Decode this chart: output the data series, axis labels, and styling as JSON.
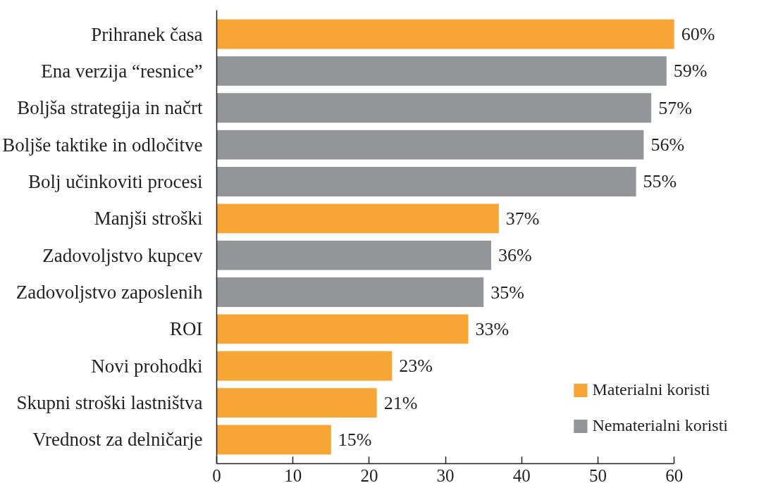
{
  "chart_data": {
    "type": "bar",
    "orientation": "horizontal",
    "categories": [
      "Prihranek časa",
      "Ena verzija “resnice”",
      "Boljša strategija in načrt",
      "Boljše taktike in odločitve",
      "Bolj učinkoviti procesi",
      "Manjši stroški",
      "Zadovoljstvo kupcev",
      "Zadovoljstvo zaposlenih",
      "ROI",
      "Novi prohodki",
      "Skupni stroški lastništva",
      "Vrednost za delničarje"
    ],
    "series": [
      {
        "name": "Materialni koristi",
        "color": "#f7a535",
        "values": [
          60,
          null,
          null,
          null,
          null,
          37,
          null,
          null,
          33,
          23,
          21,
          15
        ],
        "value_labels": [
          "60%",
          null,
          null,
          null,
          null,
          "37%",
          null,
          null,
          "33%",
          "23%",
          "21%",
          "15%"
        ]
      },
      {
        "name": "Nematerialni koristi",
        "color": "#939598",
        "values": [
          null,
          59,
          57,
          56,
          55,
          null,
          36,
          35,
          null,
          null,
          null,
          null
        ],
        "value_labels": [
          null,
          "59%",
          "57%",
          "56%",
          "55%",
          null,
          "36%",
          "35%",
          null,
          null,
          null,
          null
        ]
      }
    ],
    "xlim": [
      0,
      60
    ],
    "xticks": [
      0,
      10,
      20,
      30,
      40,
      50,
      60
    ],
    "grid": false,
    "legend": "bottom right"
  }
}
